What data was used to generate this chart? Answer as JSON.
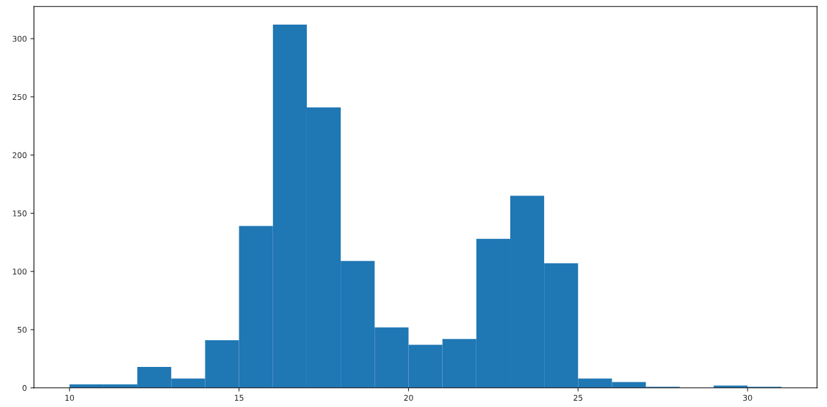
{
  "chart_data": {
    "type": "histogram",
    "color": "#1f77b4",
    "bins": [
      10,
      11,
      12,
      13,
      14,
      15,
      16,
      17,
      18,
      19,
      20,
      21,
      22,
      23,
      24,
      25,
      26,
      27,
      28,
      29,
      30,
      31
    ],
    "values": [
      3,
      3,
      18,
      8,
      41,
      139,
      312,
      241,
      109,
      52,
      37,
      42,
      128,
      165,
      107,
      8,
      5,
      1,
      0,
      2,
      1
    ],
    "xlim": [
      8.95,
      32.05
    ],
    "ylim": [
      0,
      327.6
    ],
    "xticks": [
      10,
      15,
      20,
      25,
      30
    ],
    "yticks": [
      0,
      50,
      100,
      150,
      200,
      250,
      300
    ],
    "grid": false
  }
}
